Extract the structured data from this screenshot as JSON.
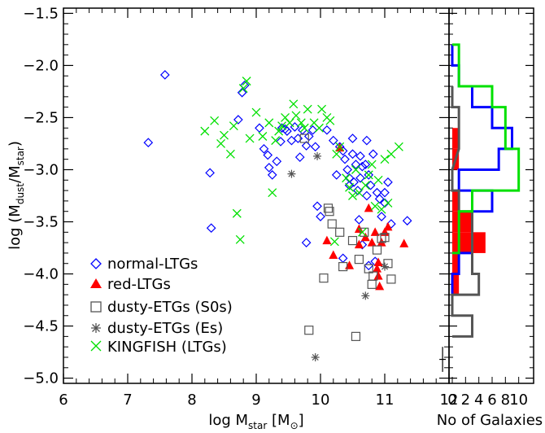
{
  "chart_data": [
    {
      "type": "scatter",
      "xlabel": {
        "main": "log M",
        "sub": "star",
        "unit_open": " [M",
        "unit_symbol": "⊙",
        "unit_close": "]"
      },
      "ylabel": {
        "main": "log  (M",
        "sub1": "dust",
        "slash": "/M",
        "sub2": "star",
        "close": ")"
      },
      "xlim": [
        6,
        12
      ],
      "ylim": [
        -5.05,
        -1.45
      ],
      "x_ticks": [
        "6",
        "7",
        "8",
        "9",
        "10",
        "11",
        "12"
      ],
      "y_ticks": [
        "-1.5",
        "-2.0",
        "-2.5",
        "-3.0",
        "-3.5",
        "-4.0",
        "-4.5",
        "-5.0"
      ],
      "legend_position": "bottom-left",
      "error_bar": {
        "x": 11.9,
        "y": -4.82,
        "dx": 0.05,
        "dy": 0.12
      },
      "series": [
        {
          "name": "normal-LTGs",
          "marker": "diamond",
          "color": "#0000ff",
          "points": [
            [
              7.32,
              -2.74
            ],
            [
              7.58,
              -2.09
            ],
            [
              8.28,
              -3.03
            ],
            [
              8.3,
              -3.56
            ],
            [
              8.72,
              -2.52
            ],
            [
              8.78,
              -2.26
            ],
            [
              8.82,
              -2.19
            ],
            [
              9.05,
              -2.6
            ],
            [
              9.12,
              -2.8
            ],
            [
              9.18,
              -2.86
            ],
            [
              9.2,
              -2.98
            ],
            [
              9.25,
              -3.05
            ],
            [
              9.32,
              -2.92
            ],
            [
              9.38,
              -2.73
            ],
            [
              9.4,
              -2.6
            ],
            [
              9.45,
              -2.61
            ],
            [
              9.48,
              -2.63
            ],
            [
              9.55,
              -2.72
            ],
            [
              9.6,
              -2.59
            ],
            [
              9.65,
              -2.7
            ],
            [
              9.68,
              -2.88
            ],
            [
              9.72,
              -2.62
            ],
            [
              9.78,
              -2.77
            ],
            [
              9.82,
              -2.68
            ],
            [
              9.88,
              -2.62
            ],
            [
              9.92,
              -2.78
            ],
            [
              9.95,
              -3.35
            ],
            [
              9.78,
              -3.7
            ],
            [
              10.0,
              -3.45
            ],
            [
              10.1,
              -2.62
            ],
            [
              10.2,
              -2.72
            ],
            [
              10.25,
              -3.05
            ],
            [
              10.3,
              -2.78
            ],
            [
              10.35,
              -2.82
            ],
            [
              10.38,
              -2.9
            ],
            [
              10.42,
              -3.0
            ],
            [
              10.45,
              -3.08
            ],
            [
              10.5,
              -2.85
            ],
            [
              10.52,
              -3.12
            ],
            [
              10.55,
              -2.95
            ],
            [
              10.58,
              -3.2
            ],
            [
              10.62,
              -3.08
            ],
            [
              10.65,
              -2.97
            ],
            [
              10.7,
              -2.95
            ],
            [
              10.72,
              -3.25
            ],
            [
              10.75,
              -3.05
            ],
            [
              10.78,
              -3.15
            ],
            [
              10.82,
              -2.85
            ],
            [
              10.88,
              -3.22
            ],
            [
              10.92,
              -3.28
            ],
            [
              10.95,
              -3.45
            ],
            [
              11.0,
              -3.22
            ],
            [
              11.05,
              -3.12
            ],
            [
              11.1,
              -3.52
            ],
            [
              11.35,
              -3.49
            ],
            [
              10.6,
              -3.48
            ],
            [
              10.65,
              -3.72
            ],
            [
              10.35,
              -3.85
            ],
            [
              10.75,
              -3.92
            ],
            [
              10.85,
              -3.88
            ],
            [
              11.0,
              -3.32
            ],
            [
              10.5,
              -2.7
            ],
            [
              10.72,
              -2.72
            ],
            [
              10.45,
              -3.15
            ],
            [
              10.62,
              -2.87
            ]
          ]
        },
        {
          "name": "red-LTGs",
          "marker": "triangle",
          "color": "#ff0000",
          "points": [
            [
              10.1,
              -3.68
            ],
            [
              10.2,
              -3.82
            ],
            [
              10.3,
              -2.79
            ],
            [
              10.45,
              -3.92
            ],
            [
              10.6,
              -3.72
            ],
            [
              10.7,
              -3.65
            ],
            [
              10.75,
              -3.37
            ],
            [
              10.8,
              -3.7
            ],
            [
              10.85,
              -3.6
            ],
            [
              10.9,
              -3.89
            ],
            [
              10.95,
              -3.7
            ],
            [
              11.0,
              -3.6
            ],
            [
              11.05,
              -3.55
            ],
            [
              10.88,
              -3.95
            ],
            [
              10.9,
              -4.02
            ],
            [
              10.92,
              -4.12
            ],
            [
              11.3,
              -3.71
            ],
            [
              10.6,
              -3.57
            ]
          ]
        },
        {
          "name": "dusty-ETGs (S0s)",
          "marker": "square",
          "color": "#555555",
          "points": [
            [
              9.75,
              -2.7
            ],
            [
              9.82,
              -4.54
            ],
            [
              10.12,
              -3.37
            ],
            [
              10.14,
              -3.4
            ],
            [
              10.18,
              -3.52
            ],
            [
              10.05,
              -4.04
            ],
            [
              10.35,
              -3.93
            ],
            [
              10.5,
              -3.68
            ],
            [
              10.6,
              -3.86
            ],
            [
              10.68,
              -3.6
            ],
            [
              10.75,
              -3.95
            ],
            [
              10.8,
              -4.1
            ],
            [
              10.82,
              -4.02
            ],
            [
              10.88,
              -3.77
            ],
            [
              10.95,
              -3.66
            ],
            [
              11.0,
              -3.65
            ],
            [
              11.1,
              -4.05
            ],
            [
              10.55,
              -4.6
            ],
            [
              10.3,
              -3.6
            ],
            [
              11.05,
              -3.9
            ]
          ]
        },
        {
          "name": "dusty-ETGs (Es)",
          "marker": "asterisk",
          "color": "#555555",
          "points": [
            [
              9.55,
              -3.04
            ],
            [
              9.95,
              -2.87
            ],
            [
              9.92,
              -4.8
            ],
            [
              10.7,
              -4.21
            ],
            [
              11.0,
              -3.93
            ]
          ]
        },
        {
          "name": "KINGFISH (LTGs)",
          "marker": "x",
          "color": "#00e000",
          "points": [
            [
              8.2,
              -2.63
            ],
            [
              8.35,
              -2.53
            ],
            [
              8.45,
              -2.75
            ],
            [
              8.5,
              -2.67
            ],
            [
              8.6,
              -2.85
            ],
            [
              8.65,
              -2.58
            ],
            [
              8.7,
              -3.42
            ],
            [
              8.75,
              -3.67
            ],
            [
              8.8,
              -2.22
            ],
            [
              8.85,
              -2.15
            ],
            [
              8.9,
              -2.7
            ],
            [
              9.0,
              -2.45
            ],
            [
              9.1,
              -2.68
            ],
            [
              9.2,
              -2.55
            ],
            [
              9.25,
              -3.22
            ],
            [
              9.3,
              -2.72
            ],
            [
              9.35,
              -2.63
            ],
            [
              9.4,
              -2.58
            ],
            [
              9.45,
              -2.5
            ],
            [
              9.52,
              -2.55
            ],
            [
              9.58,
              -2.37
            ],
            [
              9.62,
              -2.48
            ],
            [
              9.7,
              -2.55
            ],
            [
              9.75,
              -2.6
            ],
            [
              9.8,
              -2.42
            ],
            [
              9.9,
              -2.55
            ],
            [
              9.98,
              -2.6
            ],
            [
              10.02,
              -2.42
            ],
            [
              10.1,
              -2.5
            ],
            [
              10.15,
              -2.53
            ],
            [
              10.22,
              -3.69
            ],
            [
              10.25,
              -2.85
            ],
            [
              10.3,
              -2.78
            ],
            [
              10.4,
              -3.08
            ],
            [
              10.45,
              -3.17
            ],
            [
              10.5,
              -3.25
            ],
            [
              10.6,
              -3.22
            ],
            [
              10.65,
              -3.6
            ],
            [
              10.7,
              -3.15
            ],
            [
              10.75,
              -3.05
            ],
            [
              10.8,
              -2.95
            ],
            [
              10.85,
              -3.35
            ],
            [
              10.9,
              -3.1
            ],
            [
              10.95,
              -3.38
            ],
            [
              11.0,
              -2.9
            ],
            [
              11.1,
              -2.85
            ],
            [
              11.22,
              -2.78
            ],
            [
              11.05,
              -3.32
            ],
            [
              10.55,
              -3.0
            ]
          ]
        }
      ]
    },
    {
      "type": "histogram",
      "xlabel": "No of Galaxies",
      "x_ticks": [
        "0",
        "2",
        "4",
        "6",
        "8",
        "10"
      ],
      "xlim": [
        0,
        12
      ],
      "bin_width": 0.2,
      "series": [
        {
          "name": "red-LTGs",
          "style": "filled",
          "color": "#ff0000",
          "bins": [
            [
              -4.2,
              1
            ],
            [
              -4.0,
              1
            ],
            [
              -3.8,
              5
            ],
            [
              -3.6,
              3
            ],
            [
              -3.4,
              1
            ],
            [
              -3.0,
              1
            ],
            [
              -2.8,
              1
            ]
          ]
        },
        {
          "name": "normal-LTGs",
          "style": "step",
          "color": "#0000ff",
          "bins": [
            [
              -4.2,
              0
            ],
            [
              -4.0,
              1
            ],
            [
              -3.8,
              3
            ],
            [
              -3.6,
              3
            ],
            [
              -3.4,
              6
            ],
            [
              -3.2,
              1
            ],
            [
              -3.0,
              7
            ],
            [
              -2.8,
              9
            ],
            [
              -2.6,
              6
            ],
            [
              -2.4,
              3
            ],
            [
              -2.2,
              1
            ],
            [
              -2.0,
              0
            ]
          ]
        },
        {
          "name": "dusty-ETGs (S0s)",
          "style": "step",
          "color": "#555555",
          "bins": [
            [
              -4.6,
              3
            ],
            [
              -4.4,
              0
            ],
            [
              -4.2,
              4
            ],
            [
              -4.0,
              3
            ],
            [
              -3.8,
              3
            ],
            [
              -3.6,
              3
            ],
            [
              -3.4,
              1
            ],
            [
              -3.2,
              0
            ],
            [
              -2.8,
              1
            ],
            [
              -2.6,
              1
            ],
            [
              -2.4,
              0
            ]
          ]
        },
        {
          "name": "KINGFISH (LTGs)",
          "style": "step",
          "color": "#00e000",
          "bins": [
            [
              -3.8,
              1
            ],
            [
              -3.6,
              1
            ],
            [
              -3.4,
              3
            ],
            [
              -3.2,
              10
            ],
            [
              -3.0,
              10
            ],
            [
              -2.8,
              8
            ],
            [
              -2.6,
              8
            ],
            [
              -2.4,
              6
            ],
            [
              -2.2,
              1
            ],
            [
              -2.0,
              1
            ]
          ]
        }
      ]
    }
  ]
}
